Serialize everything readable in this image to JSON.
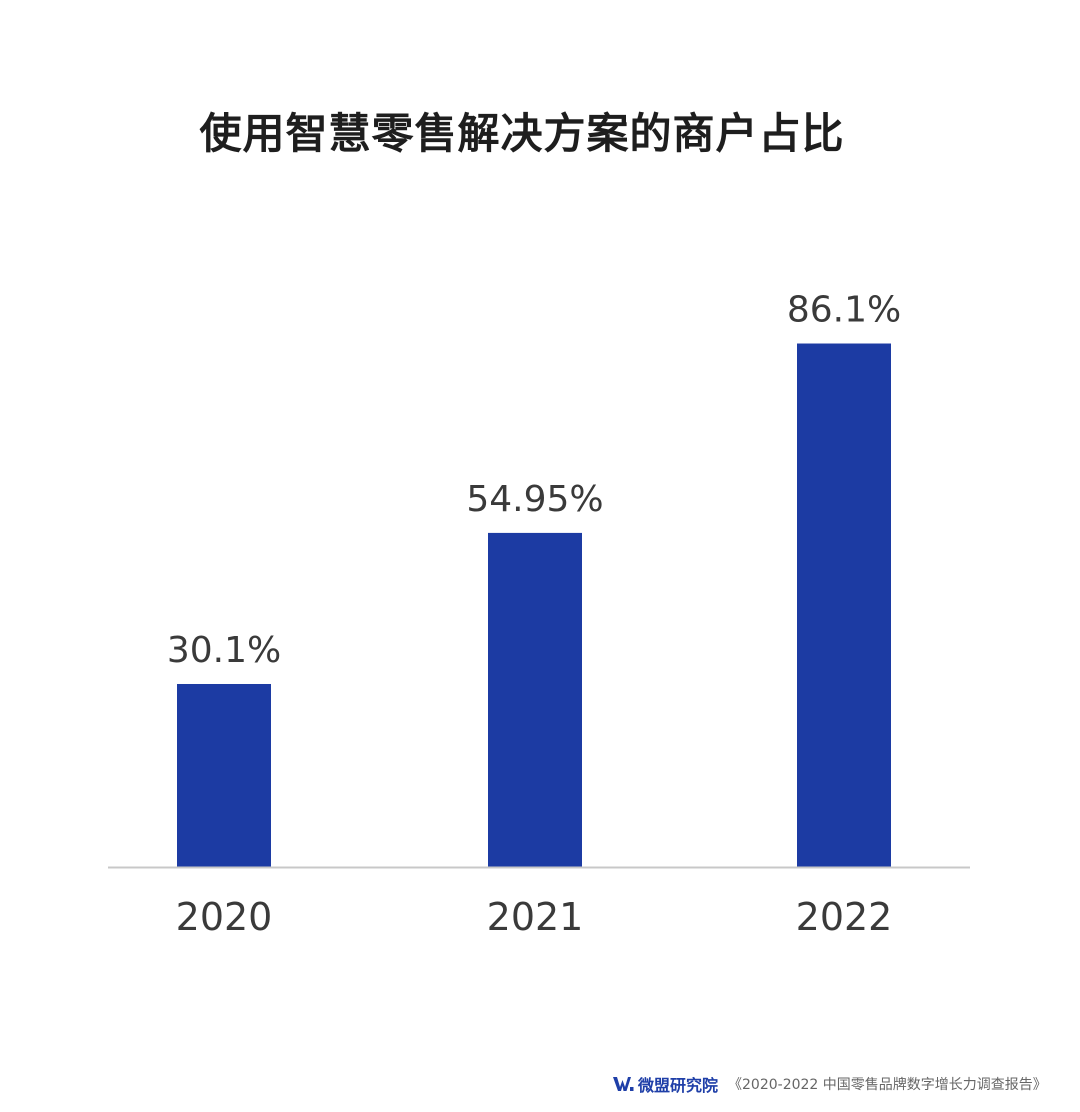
{
  "chart_data": {
    "type": "bar",
    "title": "使用智慧零售解决方案的商户占比",
    "categories": [
      "2020",
      "2021",
      "2022"
    ],
    "values": [
      30.1,
      54.95,
      86.1
    ],
    "value_labels": [
      "30.1%",
      "54.95%",
      "86.1%"
    ],
    "unit": "%",
    "ylim": [
      0,
      100
    ],
    "grid": false,
    "legend": "none",
    "colors": {
      "bar": "#1c3ba3",
      "axis": "#c8c8c8",
      "label": "#3a3a3a",
      "title": "#1e1e1e"
    }
  },
  "footer": {
    "logo_icon": "weimeng-logo-icon",
    "brand": "微盟研究院",
    "source": "《2020-2022 中国零售品牌数字增长力调查报告》"
  }
}
